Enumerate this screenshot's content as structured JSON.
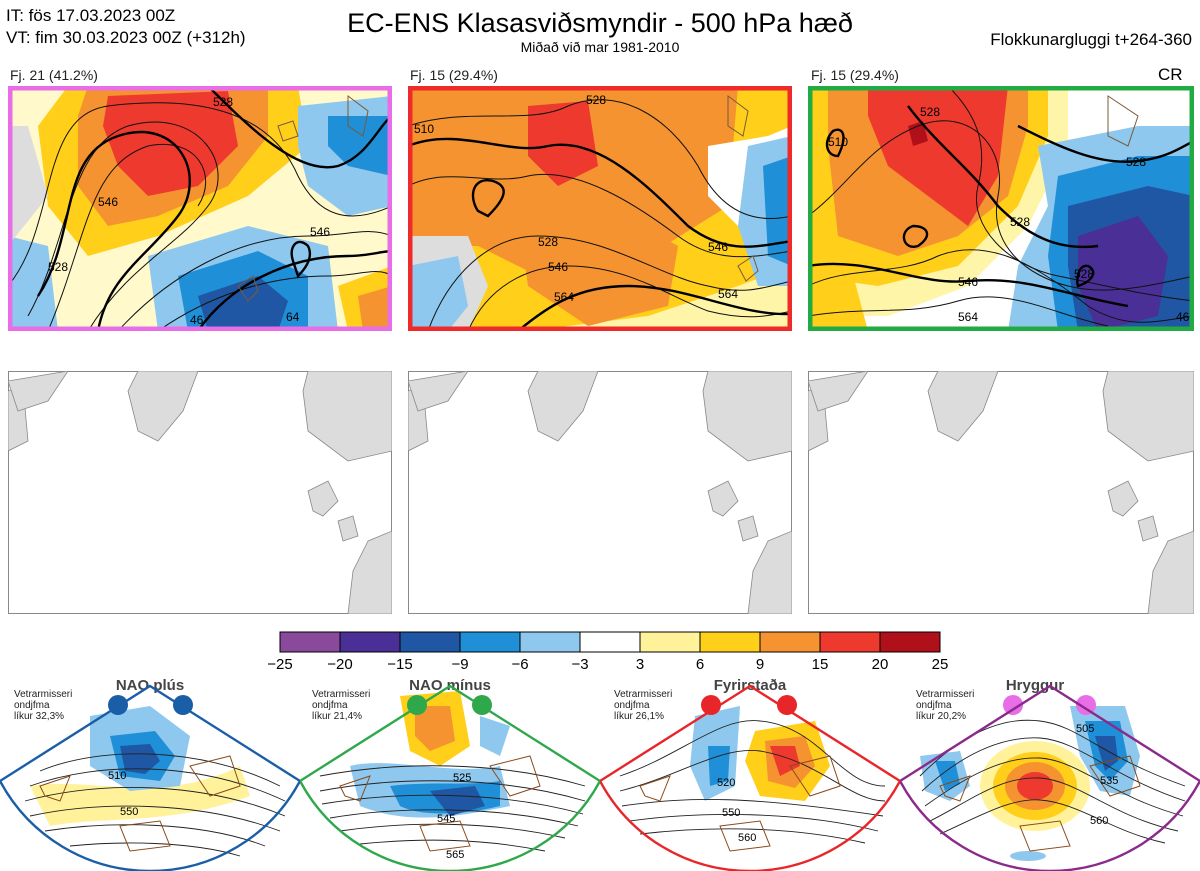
{
  "header": {
    "it_line": "IT: fös 17.03.2023 00Z",
    "vt_line": "VT: fim 30.03.2023 00Z  (+312h)",
    "title": "EC-ENS Klasasviðsmyndir - 500 hPa hæð",
    "subtitle": "Miðað við mar 1981-2010",
    "window": "Flokkunargluggi t+264-360"
  },
  "clusters": [
    {
      "label": "Fj. 21 (41.2%)",
      "frame_color": "#e86ee8",
      "contours": [
        "528",
        "546",
        "528",
        "546",
        "64",
        "46"
      ]
    },
    {
      "label": "Fj. 15 (29.4%)",
      "frame_color": "#ee2a2a",
      "contours": [
        "510",
        "528",
        "528",
        "546",
        "564",
        "546",
        "564"
      ]
    },
    {
      "label": "Fj. 15 (29.4%)",
      "frame_color": "#22aa44",
      "extra": "CR",
      "contours": [
        "510",
        "528",
        "528",
        "528",
        "546",
        "564",
        "528",
        "46"
      ]
    }
  ],
  "colorbar": {
    "ticks": [
      "−25",
      "−20",
      "−15",
      "−9",
      "−6",
      "−3",
      "3",
      "6",
      "9",
      "15",
      "20",
      "25"
    ],
    "colors": [
      "#8a4a9c",
      "#4a2f96",
      "#1f57a4",
      "#1f8fd8",
      "#8ec8ee",
      "#ffffff",
      "#fff29a",
      "#ffcf1a",
      "#f59331",
      "#ee3a2e",
      "#b0101a"
    ]
  },
  "patterns": [
    {
      "title": "NAO plús",
      "season": "Vetrarmisseri",
      "months": "ondjfma",
      "prob": "líkur 32,3%",
      "color": "#1a5ea8",
      "dot_color": "#1a5ea8",
      "contours": [
        "510",
        "550"
      ]
    },
    {
      "title": "NAO mínus",
      "season": "Vetrarmisseri",
      "months": "ondjfma",
      "prob": "líkur 21,4%",
      "color": "#2ea84a",
      "dot_color": "#2ea84a",
      "contours": [
        "525",
        "545",
        "565"
      ]
    },
    {
      "title": "Fyrirstaða",
      "season": "Vetrarmisseri",
      "months": "ondjfma",
      "prob": "líkur 26,1%",
      "color": "#e8262a",
      "dot_color": "#e8262a",
      "contours": [
        "520",
        "550",
        "560"
      ]
    },
    {
      "title": "Hryggur",
      "season": "Vetrarmisseri",
      "months": "ondjfma",
      "prob": "líkur 20,2%",
      "color": "#8a2a8a",
      "dot_color": "#e86ee8",
      "contours": [
        "505",
        "535",
        "560"
      ]
    }
  ]
}
